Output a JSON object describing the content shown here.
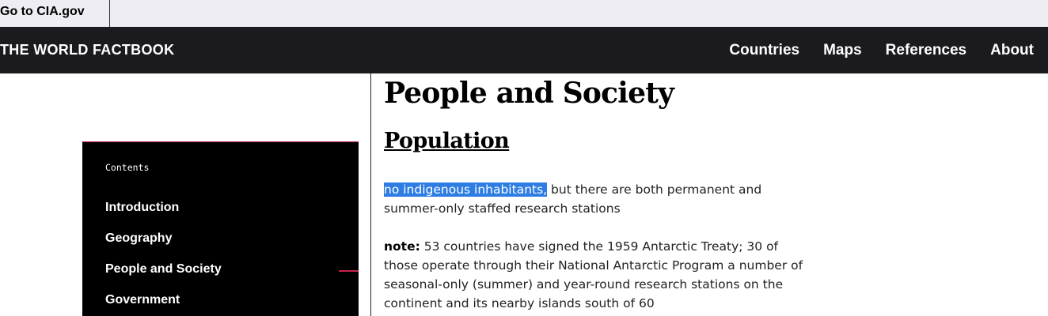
{
  "topbar": {
    "cia_link": "Go to CIA.gov"
  },
  "navbar": {
    "brand": "THE WORLD FACTBOOK",
    "links": [
      "Countries",
      "Maps",
      "References",
      "About"
    ]
  },
  "sidebar": {
    "heading": "Contents",
    "items": [
      "Introduction",
      "Geography",
      "People and Society",
      "Government"
    ],
    "active_item": "People and Society"
  },
  "main": {
    "page_title": "People and Society",
    "section_title": "Population",
    "para1": {
      "highlighted": "no indigenous inhabitants,",
      "rest": " but there are both permanent and summer-only staffed research stations"
    },
    "para2": {
      "label": "note:",
      "text": " 53 countries have signed the 1959 Antarctic Treaty; 30 of those operate through their National Antarctic Program a number of seasonal-only (summer) and year-round research stations on the continent and its nearby islands south of 60"
    }
  },
  "colors": {
    "topbar_bg": "#eeedf3",
    "navbar_bg": "#1b1a1e",
    "sidebar_bg": "#000000",
    "accent": "#c4224b",
    "selection": "#2e7de2"
  }
}
